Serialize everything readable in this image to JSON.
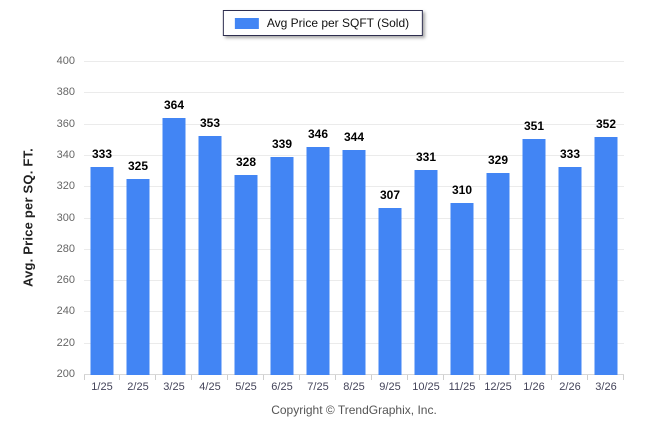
{
  "legend": {
    "label": "Avg Price per SQFT (Sold)"
  },
  "footer": {
    "text": "Copyright © TrendGraphix, Inc."
  },
  "colors": {
    "bar": "#4285F4",
    "grid": "#ebebeb",
    "axis_text": "#666666",
    "value_text": "#000000",
    "legend_border": "#2e2e4f"
  },
  "chart_data": {
    "type": "bar",
    "title": "",
    "series_name": "Avg Price per SQFT (Sold)",
    "categories": [
      "1/25",
      "2/25",
      "3/25",
      "4/25",
      "5/25",
      "6/25",
      "7/25",
      "8/25",
      "9/25",
      "10/25",
      "11/25",
      "12/25",
      "1/26",
      "2/26",
      "3/26"
    ],
    "values": [
      333,
      325,
      364,
      353,
      328,
      339,
      346,
      344,
      307,
      331,
      310,
      329,
      351,
      333,
      352
    ],
    "xlabel": "",
    "ylabel": "Avg. Price per SQ. FT.",
    "ylim": [
      200,
      400
    ],
    "ytick_step": 20,
    "grid": true,
    "legend_position": "top-center"
  }
}
